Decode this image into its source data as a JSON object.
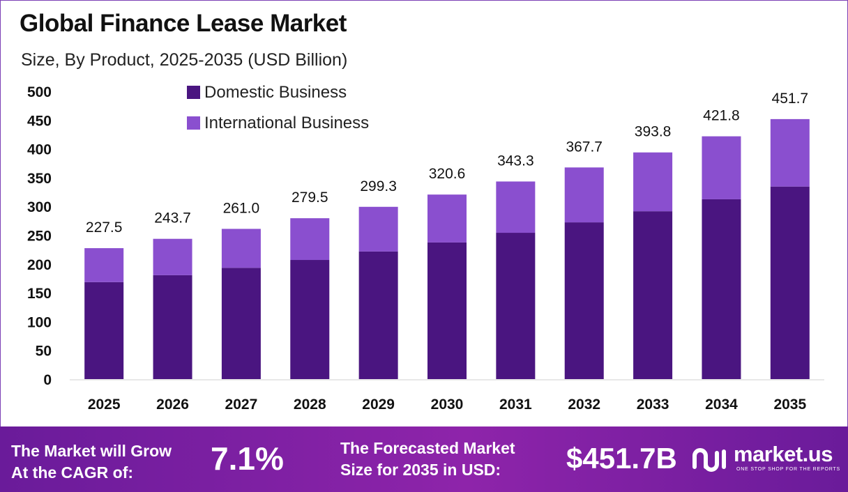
{
  "header": {
    "title": "Global Finance Lease Market",
    "subtitle": "Size, By Product, 2025-2035 (USD Billion)"
  },
  "chart_data": {
    "type": "bar",
    "stacked": true,
    "categories": [
      "2025",
      "2026",
      "2027",
      "2028",
      "2029",
      "2030",
      "2031",
      "2032",
      "2033",
      "2034",
      "2035"
    ],
    "series": [
      {
        "name": "Domestic Business",
        "color": "#4a1580",
        "values": [
          168.5,
          180.5,
          193.3,
          207.0,
          221.7,
          237.4,
          254.2,
          272.3,
          291.6,
          312.4,
          334.5
        ]
      },
      {
        "name": "International Business",
        "color": "#8a4fcf",
        "values": [
          59.0,
          63.2,
          67.7,
          72.5,
          77.6,
          83.2,
          89.1,
          95.4,
          102.2,
          109.4,
          117.2
        ]
      }
    ],
    "totals": [
      "227.5",
      "243.7",
      "261.0",
      "279.5",
      "299.3",
      "320.6",
      "343.3",
      "367.7",
      "393.8",
      "421.8",
      "451.7"
    ],
    "yticks": [
      "0",
      "50",
      "100",
      "150",
      "200",
      "250",
      "300",
      "350",
      "400",
      "450",
      "500"
    ],
    "ylim": [
      0,
      500
    ],
    "grid": false,
    "legend_position": "top-left"
  },
  "footer": {
    "cagr_label_line1": "The Market will Grow",
    "cagr_label_line2": "At the CAGR of:",
    "cagr_value": "7.1%",
    "forecast_label_line1": "The Forecasted Market",
    "forecast_label_line2": "Size for 2035 in USD:",
    "forecast_value": "$451.7B",
    "logo_name": "market.us",
    "logo_tagline": "ONE STOP SHOP FOR THE REPORTS",
    "brand_color": "#7b2cbf"
  }
}
